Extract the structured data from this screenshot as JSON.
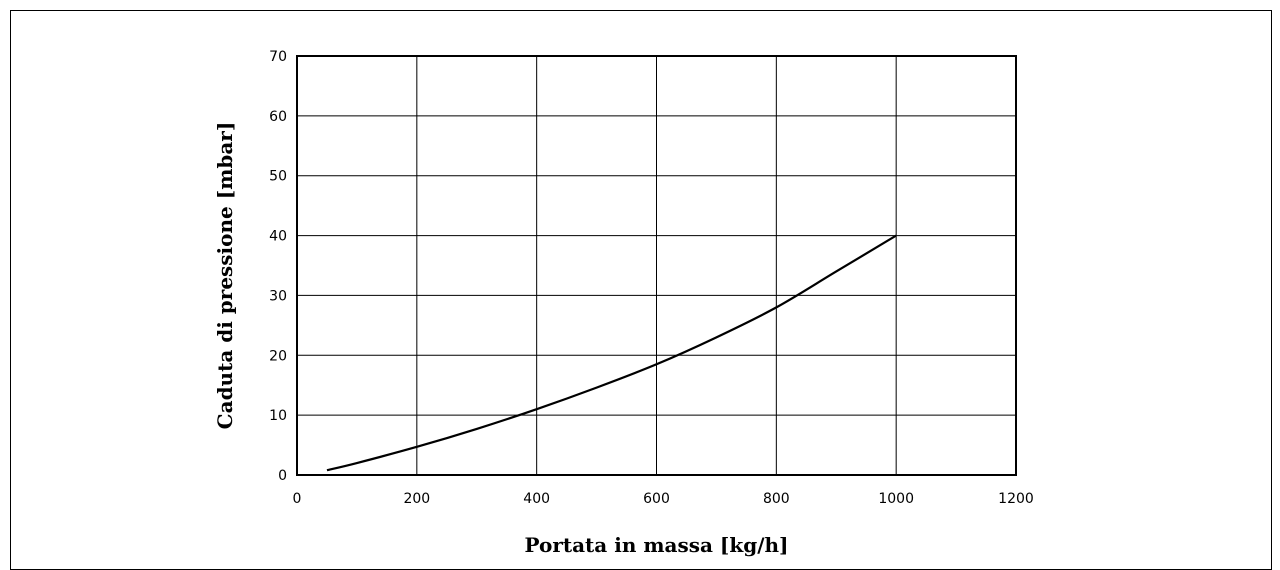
{
  "chart_data": {
    "type": "line",
    "xlabel": "Portata in massa [kg/h]",
    "ylabel": "Caduta di pressione [mbar]",
    "xlim": [
      0,
      1200
    ],
    "ylim": [
      0,
      70
    ],
    "xticks": [
      "0",
      "200",
      "400",
      "600",
      "800",
      "1000",
      "1200"
    ],
    "yticks": [
      "0",
      "10",
      "20",
      "30",
      "40",
      "50",
      "60",
      "70"
    ],
    "grid": true,
    "series": [
      {
        "color": "#000000",
        "x": [
          50,
          100,
          200,
          300,
          400,
          500,
          600,
          700,
          800,
          900,
          1000
        ],
        "y": [
          0.8,
          2.0,
          4.7,
          7.7,
          11.0,
          14.6,
          18.5,
          23.0,
          28.0,
          34.0,
          40.0
        ]
      }
    ]
  }
}
